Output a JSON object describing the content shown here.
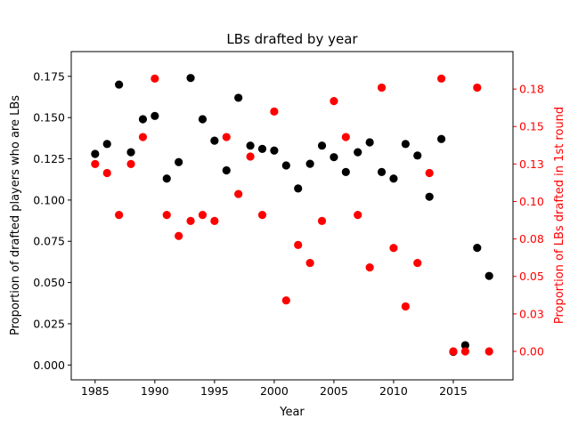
{
  "chart_data": {
    "type": "scatter",
    "title": "LBs drafted by year",
    "xlabel": "Year",
    "ylabel": "Proportion of drafted players who are LBs",
    "ylabel_right": "Proportion of LBs drafted in 1st round",
    "xlim": [
      1983,
      2020
    ],
    "ylim": [
      -0.009,
      0.19
    ],
    "ylim_right": [
      -0.019,
      0.2
    ],
    "x_ticks": [
      1985,
      1990,
      1995,
      2000,
      2005,
      2010,
      2015
    ],
    "x_tick_labels": [
      "1985",
      "1990",
      "1995",
      "2000",
      "2005",
      "2010",
      "2015"
    ],
    "y_ticks": [
      0.0,
      0.025,
      0.05,
      0.075,
      0.1,
      0.125,
      0.15,
      0.175
    ],
    "y_tick_labels": [
      "0.000",
      "0.025",
      "0.050",
      "0.075",
      "0.100",
      "0.125",
      "0.150",
      "0.175"
    ],
    "y_ticks_right": [
      0.0,
      0.025,
      0.05,
      0.075,
      0.1,
      0.125,
      0.15,
      0.175
    ],
    "y_tick_labels_right": [
      "0.00",
      "0.03",
      "0.05",
      "0.08",
      "0.10",
      "0.13",
      "0.15",
      "0.18"
    ],
    "grid": false,
    "series": [
      {
        "axis": "left",
        "color": "#000000",
        "x": [
          1985,
          1986,
          1987,
          1988,
          1989,
          1990,
          1991,
          1992,
          1993,
          1994,
          1995,
          1996,
          1997,
          1998,
          1999,
          2000,
          2001,
          2002,
          2003,
          2004,
          2005,
          2006,
          2007,
          2008,
          2009,
          2010,
          2011,
          2012,
          2013,
          2014,
          2015,
          2016,
          2017,
          2018
        ],
        "y": [
          0.128,
          0.134,
          0.17,
          0.129,
          0.149,
          0.151,
          0.113,
          0.123,
          0.174,
          0.149,
          0.136,
          0.118,
          0.162,
          0.133,
          0.131,
          0.13,
          0.121,
          0.107,
          0.122,
          0.133,
          0.126,
          0.117,
          0.129,
          0.135,
          0.117,
          0.113,
          0.134,
          0.127,
          0.102,
          0.137,
          0.008,
          0.012,
          0.071,
          0.054
        ]
      },
      {
        "axis": "right",
        "color": "#ff0000",
        "x": [
          1985,
          1986,
          1987,
          1988,
          1989,
          1990,
          1991,
          1992,
          1993,
          1994,
          1995,
          1996,
          1997,
          1998,
          1999,
          2000,
          2001,
          2002,
          2003,
          2004,
          2005,
          2006,
          2007,
          2008,
          2009,
          2010,
          2011,
          2012,
          2013,
          2014,
          2015,
          2016,
          2017,
          2018
        ],
        "y": [
          0.125,
          0.119,
          0.091,
          0.125,
          0.143,
          0.182,
          0.091,
          0.077,
          0.087,
          0.091,
          0.087,
          0.143,
          0.105,
          0.13,
          0.091,
          0.16,
          0.034,
          0.071,
          0.059,
          0.087,
          0.167,
          0.143,
          0.091,
          0.056,
          0.176,
          0.069,
          0.03,
          0.059,
          0.119,
          0.182,
          0.0,
          0.0,
          0.176,
          0.0
        ]
      }
    ]
  }
}
